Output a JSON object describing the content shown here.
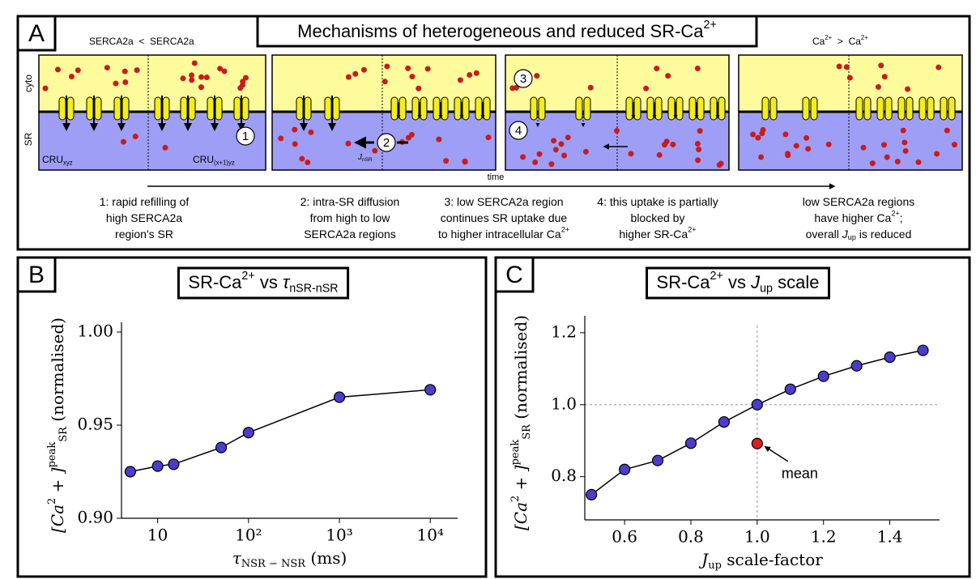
{
  "panel_a": {
    "label": "A",
    "title": [
      "Mechanisms of heterogeneous and reduced SR-Ca",
      "2+"
    ],
    "top_left": "SERCA2a  <  SERCA2a",
    "top_right": [
      "Ca",
      "2+",
      "  >  ",
      "Ca",
      "2+"
    ],
    "side_labels": [
      "cyto",
      "SR"
    ],
    "cru_left": [
      "CRU",
      "xyz"
    ],
    "cru_right": [
      "CRU",
      "(x+1)yz"
    ],
    "flux": [
      "J",
      "nSR"
    ],
    "steps": [
      "1",
      "2",
      "3",
      "4"
    ],
    "time": "time",
    "captions": [
      [
        "1: rapid refilling of",
        "high SERCA2a",
        "region's SR"
      ],
      [
        "2: intra-SR diffusion",
        "from high to low",
        "SERCA2a regions"
      ],
      [
        "3: low SERCA2a region",
        "continues SR uptake due",
        [
          "to higher intracellular Ca",
          "2+"
        ]
      ],
      [
        "4: this uptake is partially",
        "blocked by",
        [
          "higher SR-Ca",
          "2+"
        ]
      ],
      [
        "low SERCA2a regions",
        [
          "have higher Ca",
          "2+",
          ";"
        ],
        [
          "overall ",
          "J",
          "up",
          " is reduced"
        ]
      ]
    ]
  },
  "chart_data": [
    {
      "type": "line",
      "label": "B",
      "title": {
        "text": "SR-Ca",
        "sup": "2+",
        "mid": " vs ",
        "sym": "τ",
        "sub": "nSR-nSR"
      },
      "x_label": {
        "sym": "τ",
        "sub": "NSR − NSR",
        "tail": " (ms)"
      },
      "y_label": {
        "math": "[Ca",
        "sup": "2",
        "math2": " + ]",
        "sup2": "peak",
        "sub": "SR",
        "tail": " (normalised)"
      },
      "log_x": true,
      "x": [
        5,
        10,
        15,
        50,
        100,
        1000,
        10000
      ],
      "values": [
        0.925,
        0.928,
        0.929,
        0.938,
        0.946,
        0.965,
        0.969
      ],
      "color": "#4b3cc9",
      "xlim": [
        4,
        20000
      ],
      "xticks": [
        10,
        {
          "value": 100,
          "label": "10²"
        },
        {
          "value": 1000,
          "label": "10³"
        },
        {
          "value": 10000,
          "label": "10⁴"
        }
      ],
      "ylim": [
        0.9,
        1.0
      ],
      "yticks": [
        {
          "value": 0.9,
          "label": "0.90"
        },
        0.95,
        {
          "value": 1,
          "label": "1.00"
        }
      ]
    },
    {
      "type": "line",
      "label": "C",
      "title": {
        "text": "SR-Ca",
        "sup": "2+",
        "mid": " vs ",
        "sym": "J",
        "sub": "up",
        "tail": " scale"
      },
      "x_label": {
        "sym": "J",
        "sub": "up",
        "tail": " scale-factor"
      },
      "y_label": {
        "math": "[Ca",
        "sup": "2",
        "math2": " + ]",
        "sup2": "peak",
        "sub": "SR",
        "tail": " (normalised)"
      },
      "log_x": false,
      "x": [
        0.5,
        0.6,
        0.7,
        0.8,
        0.9,
        1.0,
        1.1,
        1.2,
        1.3,
        1.4,
        1.5
      ],
      "values": [
        0.75,
        0.82,
        0.845,
        0.893,
        0.952,
        1.0,
        1.043,
        1.079,
        1.108,
        1.132,
        1.151
      ],
      "color": "#4b3cc9",
      "highlight": {
        "x": 1.0,
        "y": 0.892,
        "label": "mean",
        "color": "#d62020"
      },
      "ref_x": 1.0,
      "ref_y": 1.0,
      "xlim": [
        0.48,
        1.55
      ],
      "xticks": [
        0.6,
        0.8,
        {
          "value": 1,
          "label": "1.0"
        },
        1.2,
        1.4
      ],
      "ylim": [
        0.68,
        1.22
      ],
      "yticks": [
        0.8,
        {
          "value": 1,
          "label": "1.0"
        },
        1.2
      ]
    }
  ]
}
